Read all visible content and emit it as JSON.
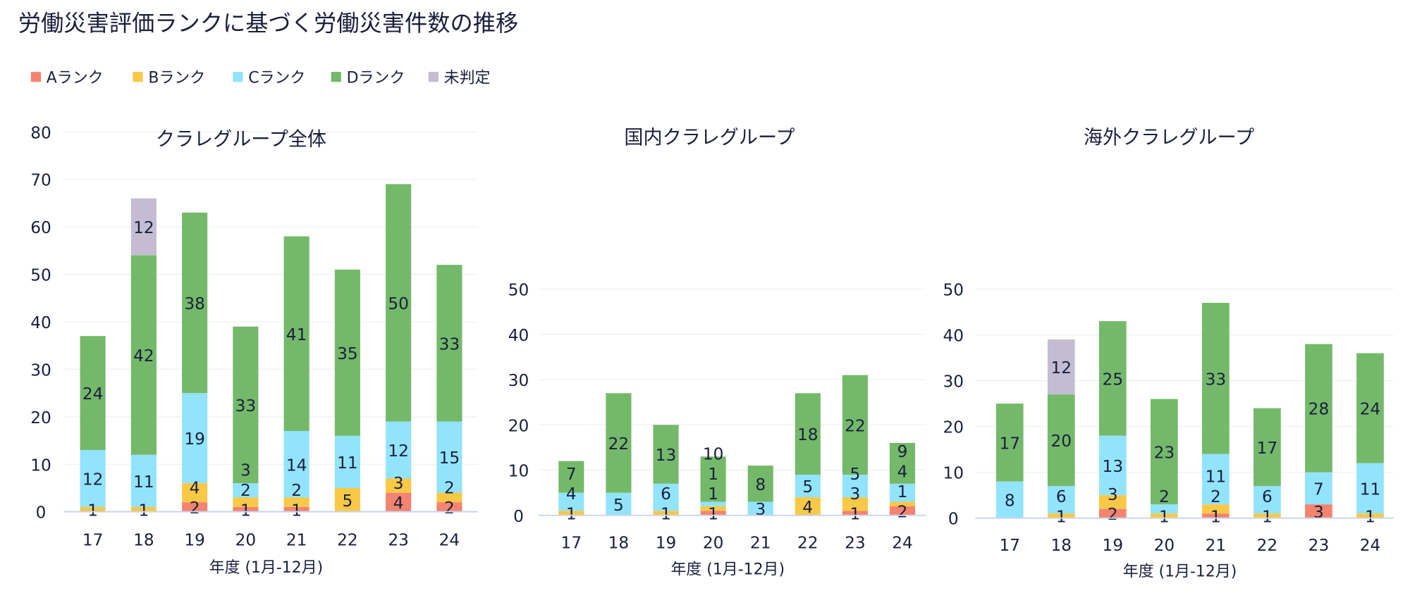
{
  "title": "労働災害評価ランクに基づく労働災害件数の推移",
  "legend": [
    {
      "name": "Aランク",
      "color": "#f4846f"
    },
    {
      "name": "Bランク",
      "color": "#f9c846"
    },
    {
      "name": "Cランク",
      "color": "#92e3fc"
    },
    {
      "name": "Dランク",
      "color": "#74b96a"
    },
    {
      "name": "未判定",
      "color": "#c3bcd2"
    }
  ],
  "chart_data": [
    {
      "type": "bar",
      "stacked": true,
      "title": "クラレグループ全体",
      "xlabel": "年度 (1月-12月)",
      "categories": [
        "17",
        "18",
        "19",
        "20",
        "21",
        "22",
        "23",
        "24"
      ],
      "ylim": [
        0,
        80
      ],
      "yticks": [
        0,
        10,
        20,
        30,
        40,
        50,
        60,
        70,
        80
      ],
      "grid": true,
      "series": [
        {
          "name": "Aランク",
          "values": [
            0,
            0,
            2,
            1,
            1,
            0,
            4,
            2
          ]
        },
        {
          "name": "Bランク",
          "values": [
            1,
            1,
            4,
            2,
            2,
            5,
            3,
            2
          ]
        },
        {
          "name": "Cランク",
          "values": [
            12,
            11,
            19,
            3,
            14,
            11,
            12,
            15
          ]
        },
        {
          "name": "Dランク",
          "values": [
            24,
            42,
            38,
            33,
            41,
            35,
            50,
            33
          ]
        },
        {
          "name": "未判定",
          "values": [
            0,
            12,
            0,
            0,
            0,
            0,
            0,
            0
          ]
        }
      ]
    },
    {
      "type": "bar",
      "stacked": true,
      "title": "国内クラレグループ",
      "xlabel": "年度 (1月-12月)",
      "categories": [
        "17",
        "18",
        "19",
        "20",
        "21",
        "22",
        "23",
        "24"
      ],
      "ylim": [
        0,
        50
      ],
      "yticks": [
        0,
        10,
        20,
        30,
        40,
        50
      ],
      "grid": true,
      "series": [
        {
          "name": "Aランク",
          "values": [
            0,
            0,
            0,
            1,
            0,
            0,
            1,
            2
          ]
        },
        {
          "name": "Bランク",
          "values": [
            1,
            0,
            1,
            1,
            0,
            4,
            3,
            1
          ]
        },
        {
          "name": "Cランク",
          "values": [
            4,
            5,
            6,
            1,
            3,
            5,
            5,
            4
          ]
        },
        {
          "name": "Dランク",
          "values": [
            7,
            22,
            13,
            10,
            8,
            18,
            22,
            9
          ]
        },
        {
          "name": "未判定",
          "values": [
            0,
            0,
            0,
            0,
            0,
            0,
            0,
            0
          ]
        }
      ]
    },
    {
      "type": "bar",
      "stacked": true,
      "title": "海外クラレグループ",
      "xlabel": "年度 (1月-12月)",
      "categories": [
        "17",
        "18",
        "19",
        "20",
        "21",
        "22",
        "23",
        "24"
      ],
      "ylim": [
        0,
        50
      ],
      "yticks": [
        0,
        10,
        20,
        30,
        40,
        50
      ],
      "grid": true,
      "series": [
        {
          "name": "Aランク",
          "values": [
            0,
            0,
            2,
            0,
            1,
            0,
            3,
            0
          ]
        },
        {
          "name": "Bランク",
          "values": [
            0,
            1,
            3,
            1,
            2,
            1,
            0,
            1
          ]
        },
        {
          "name": "Cランク",
          "values": [
            8,
            6,
            13,
            2,
            11,
            6,
            7,
            11
          ]
        },
        {
          "name": "Dランク",
          "values": [
            17,
            20,
            25,
            23,
            33,
            17,
            28,
            24
          ]
        },
        {
          "name": "未判定",
          "values": [
            0,
            12,
            0,
            0,
            0,
            0,
            0,
            0
          ]
        }
      ]
    }
  ]
}
